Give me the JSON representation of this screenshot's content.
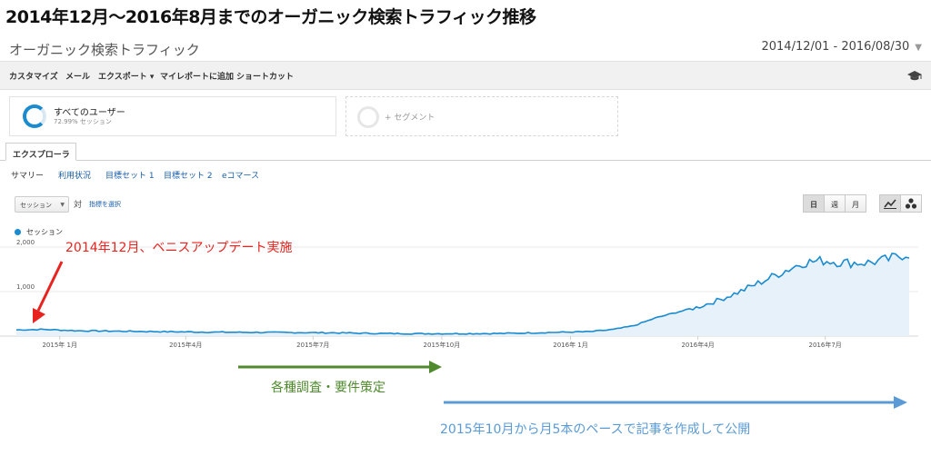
{
  "headline": "2014年12月～2016年8月までのオーガニック検索トラフィック推移",
  "report": {
    "title": "オーガニック検索トラフィック",
    "date_range": "2014/12/01 - 2016/08/30"
  },
  "toolbar": {
    "items": [
      "カスタマイズ",
      "メール",
      "エクスポート ▾",
      "マイレポートに追加",
      "ショートカット"
    ],
    "cap_icon": "graduation-cap-icon"
  },
  "segments": {
    "all_users_label": "すべてのユーザー",
    "all_users_pct": "72.99% セッション",
    "add_label": "+ セグメント"
  },
  "tabs": {
    "explorer": "エクスプローラ",
    "subtabs": [
      "サマリー",
      "利用状況",
      "目標セット 1",
      "目標セット 2",
      "eコマース"
    ]
  },
  "controls": {
    "metric": "セッション",
    "vs": "対",
    "select_metric": "指標を選択",
    "period": [
      "日",
      "週",
      "月"
    ],
    "active_period": "日"
  },
  "colors": {
    "series": "#1a8bcf",
    "area": "#e6f1fa",
    "red": "#e8231f",
    "green": "#4f8a2e",
    "blue": "#5b9bd5"
  },
  "chart_data": {
    "type": "line",
    "series": [
      {
        "name": "セッション"
      }
    ],
    "y_ticks": [
      {
        "value": 1000,
        "label": "1,000"
      },
      {
        "value": 2000,
        "label": "2,000"
      }
    ],
    "ylim": [
      0,
      2000
    ],
    "xlim": [
      "2014-12-01",
      "2016-08-30"
    ],
    "x_ticks": [
      {
        "date": "2015-01-01",
        "label": "2015年 1月"
      },
      {
        "date": "2015-04-01",
        "label": "2015年4月"
      },
      {
        "date": "2015-07-01",
        "label": "2015年7月"
      },
      {
        "date": "2015-10-01",
        "label": "2015年10月"
      },
      {
        "date": "2016-01-01",
        "label": "2016年 1月"
      },
      {
        "date": "2016-04-01",
        "label": "2016年4月"
      },
      {
        "date": "2016-07-01",
        "label": "2016年7月"
      }
    ],
    "points": [
      [
        "2014-12-01",
        140
      ],
      [
        "2014-12-20",
        150
      ],
      [
        "2015-01-15",
        120
      ],
      [
        "2015-02-15",
        110
      ],
      [
        "2015-03-15",
        100
      ],
      [
        "2015-04-15",
        90
      ],
      [
        "2015-05-15",
        85
      ],
      [
        "2015-06-15",
        80
      ],
      [
        "2015-07-15",
        75
      ],
      [
        "2015-08-15",
        60
      ],
      [
        "2015-09-15",
        55
      ],
      [
        "2015-10-15",
        55
      ],
      [
        "2015-11-15",
        60
      ],
      [
        "2015-12-15",
        80
      ],
      [
        "2016-01-15",
        100
      ],
      [
        "2016-02-01",
        150
      ],
      [
        "2016-02-15",
        230
      ],
      [
        "2016-03-01",
        400
      ],
      [
        "2016-03-15",
        520
      ],
      [
        "2016-04-01",
        650
      ],
      [
        "2016-04-15",
        800
      ],
      [
        "2016-05-01",
        1000
      ],
      [
        "2016-05-15",
        1200
      ],
      [
        "2016-06-01",
        1450
      ],
      [
        "2016-06-15",
        1650
      ],
      [
        "2016-07-01",
        1700
      ],
      [
        "2016-07-15",
        1650
      ],
      [
        "2016-08-01",
        1650
      ],
      [
        "2016-08-15",
        1720
      ],
      [
        "2016-08-28",
        1850
      ]
    ]
  },
  "annotations": {
    "penguin": "2014年12月、ベニスアップデート実施",
    "research": "各種調査・要件策定",
    "articles": "2015年10月から月5本のペースで記事を作成して公開"
  }
}
